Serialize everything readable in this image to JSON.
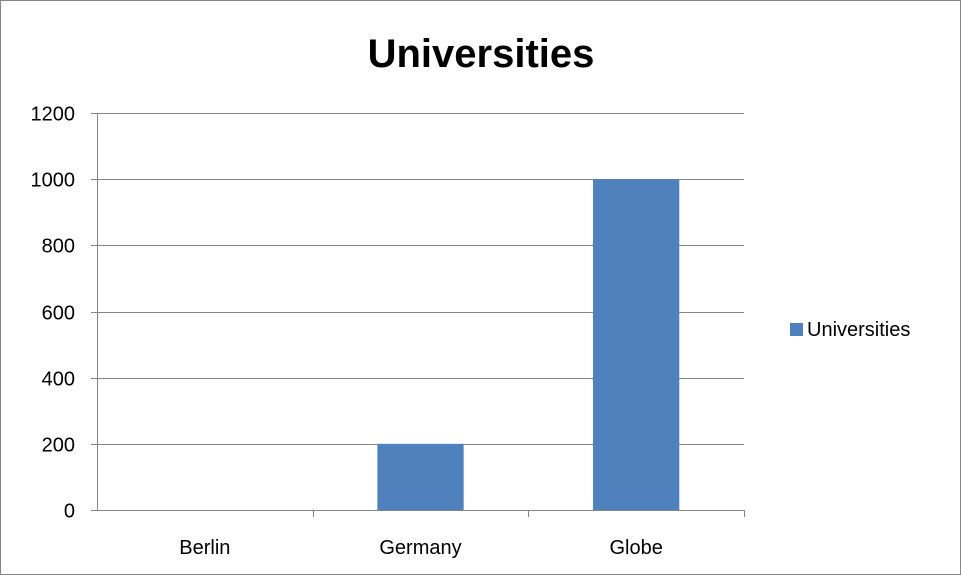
{
  "chart_data": {
    "type": "bar",
    "title": "Universities",
    "categories": [
      "Berlin",
      "Germany",
      "Globe"
    ],
    "series": [
      {
        "name": "Universities",
        "values": [
          0,
          200,
          1000
        ],
        "color": "#4F81BD"
      }
    ],
    "ylim": [
      0,
      1200
    ],
    "yticks": [
      0,
      200,
      400,
      600,
      800,
      1000,
      1200
    ],
    "xlabel": "",
    "ylabel": "",
    "grid": true,
    "legend_position": "right"
  }
}
